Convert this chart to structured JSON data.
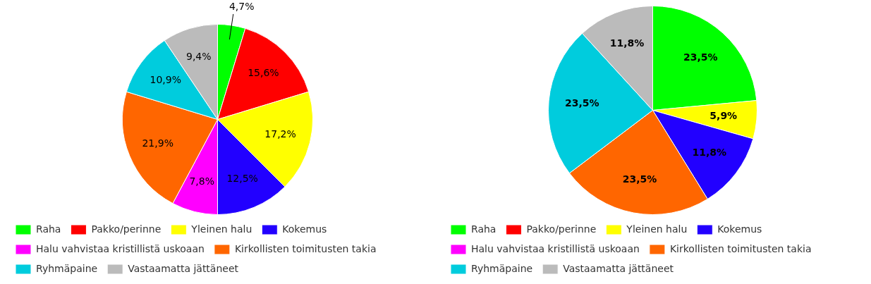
{
  "chart_data": [
    {
      "type": "pie",
      "categories": [
        "Raha",
        "Pakko/perinne",
        "Yleinen halu",
        "Kokemus",
        "Halu vahvistaa kristillistä uskoaan",
        "Kirkollisten toimitusten takia",
        "Ryhmäpaine",
        "Vastaamatta jättäneet"
      ],
      "values": [
        4.7,
        15.6,
        17.2,
        12.5,
        7.8,
        21.9,
        10.9,
        9.4
      ],
      "value_labels": [
        "4,7%",
        "15,6%",
        "17,2%",
        "12,5%",
        "7,8%",
        "21,9%",
        "10,9%",
        "9,4%"
      ],
      "colors": [
        "#00ff00",
        "#ff0000",
        "#ffff00",
        "#2200ff",
        "#ff00ff",
        "#ff6600",
        "#00ccdd",
        "#bbbbbb"
      ],
      "legend": "bottom"
    },
    {
      "type": "pie",
      "categories": [
        "Raha",
        "Pakko/perinne",
        "Yleinen halu",
        "Kokemus",
        "Halu vahvistaa kristillistä uskoaan",
        "Kirkollisten toimitusten takia",
        "Ryhmäpaine",
        "Vastaamatta jättäneet"
      ],
      "values": [
        23.5,
        0,
        5.9,
        11.8,
        0,
        23.5,
        23.5,
        11.8
      ],
      "value_labels": [
        "23,5%",
        null,
        "5,9%",
        "11,8%",
        null,
        "23,5%",
        "23,5%",
        "11,8%"
      ],
      "colors": [
        "#00ff00",
        "#ff0000",
        "#ffff00",
        "#2200ff",
        "#ff00ff",
        "#ff6600",
        "#00ccdd",
        "#bbbbbb"
      ],
      "legend": "bottom"
    }
  ]
}
